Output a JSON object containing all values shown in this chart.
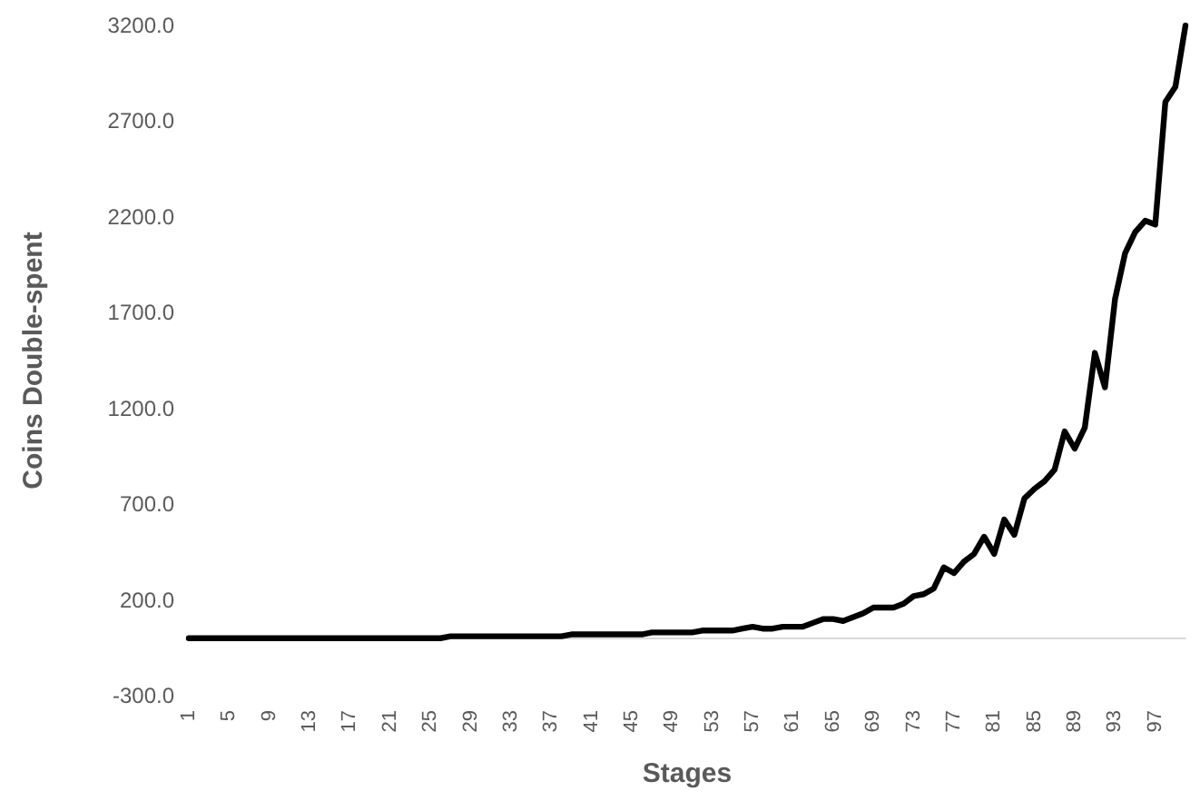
{
  "chart_data": {
    "type": "line",
    "xlabel": "Stages",
    "ylabel": "Coins Double-spent",
    "categories": [
      "1",
      null,
      null,
      null,
      "5",
      null,
      null,
      null,
      "9",
      null,
      null,
      null,
      "13",
      null,
      null,
      null,
      "17",
      null,
      null,
      null,
      "21",
      null,
      null,
      null,
      "25",
      null,
      null,
      null,
      "29",
      null,
      null,
      null,
      "33",
      null,
      null,
      null,
      "37",
      null,
      null,
      null,
      "41",
      null,
      null,
      null,
      "45",
      null,
      null,
      null,
      "49",
      null,
      null,
      null,
      "53",
      null,
      null,
      null,
      "57",
      null,
      null,
      null,
      "61",
      null,
      null,
      null,
      "65",
      null,
      null,
      null,
      "69",
      null,
      null,
      null,
      "73",
      null,
      null,
      null,
      "77",
      null,
      null,
      null,
      "81",
      null,
      null,
      null,
      "85",
      null,
      null,
      null,
      "89",
      null,
      null,
      null,
      "93",
      null,
      null,
      null,
      "97",
      null,
      null,
      null
    ],
    "series": [
      {
        "color": "#000000",
        "values": [
          0,
          0,
          0,
          0,
          0,
          0,
          0,
          0,
          0,
          0,
          0,
          0,
          0,
          0,
          0,
          0,
          0,
          0,
          0,
          0,
          0,
          0,
          0,
          0,
          0,
          0,
          10,
          10,
          10,
          10,
          10,
          10,
          10,
          10,
          10,
          10,
          10,
          10,
          20,
          20,
          20,
          20,
          20,
          20,
          20,
          20,
          30,
          30,
          30,
          30,
          30,
          40,
          40,
          40,
          40,
          50,
          60,
          50,
          50,
          60,
          60,
          60,
          80,
          100,
          100,
          90,
          110,
          130,
          160,
          160,
          160,
          180,
          220,
          230,
          260,
          370,
          340,
          400,
          440,
          530,
          440,
          620,
          540,
          730,
          780,
          820,
          880,
          1080,
          990,
          1100,
          1490,
          1310,
          1770,
          2010,
          2120,
          2180,
          2160,
          2800,
          2880,
          3200
        ]
      }
    ],
    "ylim": [
      -300,
      3200
    ],
    "yticks": [
      {
        "value": -300,
        "label": "-300.0"
      },
      {
        "value": 200,
        "label": "200.0"
      },
      {
        "value": 700,
        "label": "700.0"
      },
      {
        "value": 1200,
        "label": "1200.0"
      },
      {
        "value": 1700,
        "label": "1700.0"
      },
      {
        "value": 2200,
        "label": "2200.0"
      },
      {
        "value": 2700,
        "label": "2700.0"
      },
      {
        "value": 3200,
        "label": "3200.0"
      }
    ],
    "grid": false,
    "marker": "none",
    "line_style": "solid"
  }
}
